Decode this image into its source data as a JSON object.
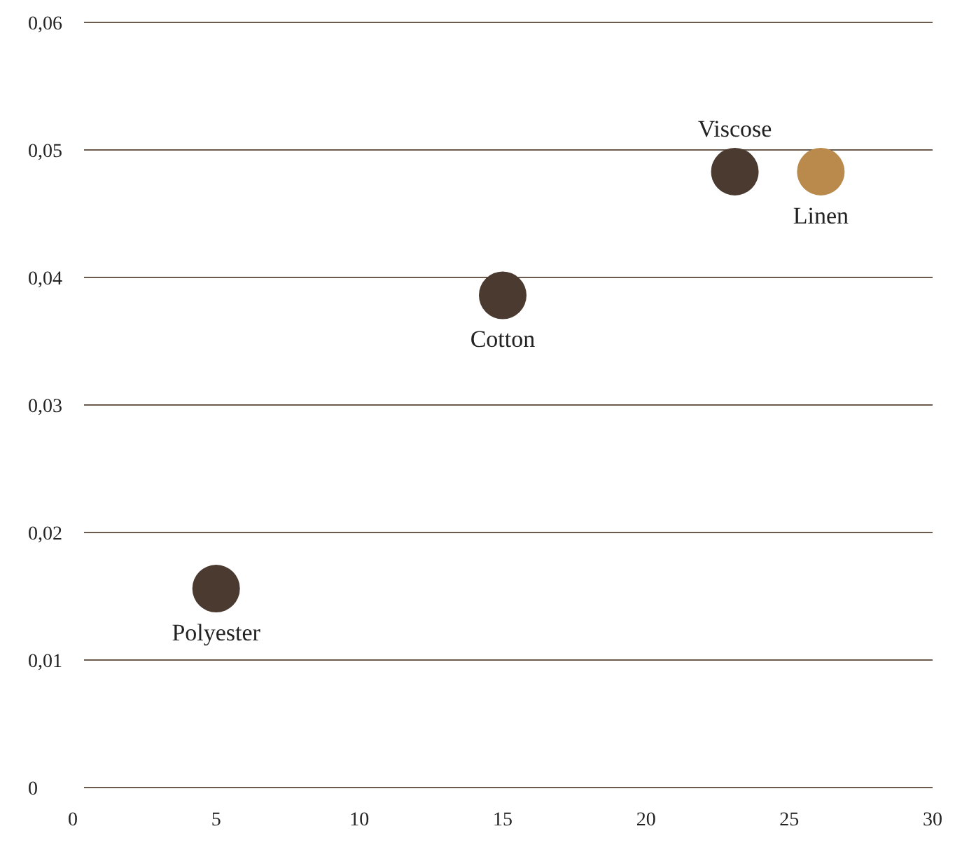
{
  "chart_data": {
    "type": "scatter",
    "x": [
      5,
      15,
      23.1,
      26.1
    ],
    "values": [
      0.0156,
      0.0386,
      0.0483,
      0.0483
    ],
    "colors": [
      "#4a3a30",
      "#4a3a30",
      "#4a3a30",
      "#b98a4c"
    ],
    "marker": "circle",
    "grid": "y",
    "xlim": [
      0,
      30
    ],
    "xticks": [
      0,
      5,
      10,
      15,
      20,
      25,
      30
    ],
    "ylim": [
      0,
      0.06
    ],
    "yticks": [
      {
        "value": 0,
        "label": "0"
      },
      {
        "value": 0.01,
        "label": "0,01"
      },
      {
        "value": 0.02,
        "label": "0,02"
      },
      {
        "value": 0.03,
        "label": "0,03"
      },
      {
        "value": 0.04,
        "label": "0,04"
      },
      {
        "value": 0.05,
        "label": "0,05"
      },
      {
        "value": 0.06,
        "label": "0,06"
      }
    ],
    "annotations": [
      {
        "text": "Polyester",
        "x": 5,
        "y": 0.0156
      },
      {
        "text": "Cotton",
        "x": 15,
        "y": 0.0386
      },
      {
        "text": "Viscose",
        "x": 23.1,
        "y": 0.0483
      },
      {
        "text": "Linen",
        "x": 26.1,
        "y": 0.0483
      }
    ]
  }
}
